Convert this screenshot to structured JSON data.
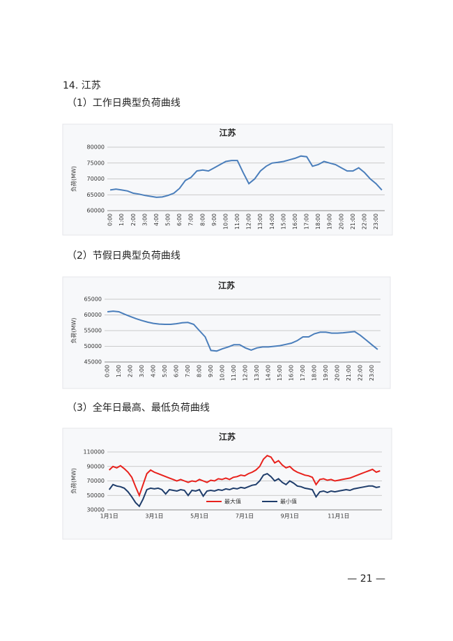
{
  "heading": "14. 江苏",
  "captions": [
    "（1）工作日典型负荷曲线",
    "（2）节假日典型负荷曲线",
    "（3）全年日最高、最低负荷曲线"
  ],
  "page_number": "— 21 —",
  "chart_data": [
    {
      "type": "line",
      "title": "江苏",
      "y_label": "负荷(MW)",
      "categories": [
        "0:00",
        null,
        "1:00",
        null,
        "2:00",
        null,
        "3:00",
        null,
        "4:00",
        null,
        "5:00",
        null,
        "6:00",
        null,
        "7:00",
        null,
        "8:00",
        null,
        "9:00",
        null,
        "10:00",
        null,
        "11:00",
        null,
        "12:00",
        null,
        "13:00",
        null,
        "14:00",
        null,
        "15:00",
        null,
        "16:00",
        null,
        "17:00",
        null,
        "18:00",
        null,
        "19:00",
        null,
        "20:00",
        null,
        "21:00",
        null,
        "22:00",
        null,
        "23:00",
        null
      ],
      "values": [
        66500,
        66800,
        66500,
        66200,
        65500,
        65200,
        64800,
        64500,
        64200,
        64300,
        64800,
        65500,
        67000,
        69500,
        70500,
        72500,
        72800,
        72500,
        73500,
        74500,
        75500,
        75800,
        75800,
        72000,
        68500,
        70000,
        72500,
        74000,
        75000,
        75200,
        75500,
        76000,
        76500,
        77200,
        77000,
        74000,
        74500,
        75500,
        75000,
        74500,
        73500,
        72500,
        72500,
        73500,
        72000,
        70000,
        68500,
        66500
      ],
      "color": "#4a7ebb",
      "ylim": [
        60000,
        80000
      ],
      "yticks": [
        60000,
        65000,
        70000,
        75000,
        80000
      ],
      "grid": true
    },
    {
      "type": "line",
      "title": "江苏",
      "y_label": "负荷(MW)",
      "categories": [
        "0:00",
        null,
        "1:00",
        null,
        "2:00",
        null,
        "3:00",
        null,
        "4:00",
        null,
        "5:00",
        null,
        "6:00",
        null,
        "7:00",
        null,
        "8:00",
        null,
        "9:00",
        null,
        "10:00",
        null,
        "11:00",
        null,
        "12:00",
        null,
        "13:00",
        null,
        "14:00",
        null,
        "15:00",
        null,
        "16:00",
        null,
        "17:00",
        null,
        "18:00",
        null,
        "19:00",
        null,
        "20:00",
        null,
        "21:00",
        null,
        "22:00",
        null,
        "23:00",
        null
      ],
      "values": [
        61000,
        61200,
        61000,
        60200,
        59500,
        58800,
        58200,
        57700,
        57300,
        57100,
        57000,
        57000,
        57200,
        57500,
        57600,
        57000,
        55000,
        53000,
        48700,
        48500,
        49200,
        49800,
        50500,
        50500,
        49500,
        48800,
        49500,
        49800,
        49800,
        50000,
        50200,
        50600,
        51000,
        51800,
        53000,
        53000,
        54000,
        54500,
        54500,
        54200,
        54200,
        54300,
        54500,
        54700,
        53500,
        52000,
        50500,
        49000
      ],
      "color": "#4a7ebb",
      "ylim": [
        45000,
        65000
      ],
      "yticks": [
        45000,
        50000,
        55000,
        60000,
        65000
      ],
      "grid": true
    },
    {
      "type": "line",
      "title": "江苏",
      "y_label": "负荷(MW)",
      "categories": [
        "1月1日",
        null,
        null,
        null,
        null,
        null,
        null,
        null,
        null,
        null,
        null,
        null,
        "3月1日",
        null,
        null,
        null,
        null,
        null,
        null,
        null,
        null,
        null,
        null,
        null,
        "5月1日",
        null,
        null,
        null,
        null,
        null,
        null,
        null,
        null,
        null,
        null,
        null,
        "7月1日",
        null,
        null,
        null,
        null,
        null,
        null,
        null,
        null,
        null,
        null,
        null,
        "9月1日",
        null,
        null,
        null,
        null,
        null,
        null,
        null,
        null,
        null,
        null,
        null,
        null,
        "11月1日",
        null,
        null,
        null,
        null,
        null,
        null,
        null,
        null,
        null,
        null,
        null
      ],
      "series": [
        {
          "name": "最大值",
          "color": "#e8211c",
          "values": [
            85000,
            90000,
            88000,
            91000,
            87000,
            82000,
            75000,
            62000,
            50000,
            65000,
            80000,
            85000,
            82000,
            80000,
            78000,
            76000,
            74000,
            72000,
            70000,
            72000,
            70000,
            68000,
            70000,
            69000,
            72000,
            70000,
            68000,
            71000,
            70000,
            73000,
            72000,
            74000,
            72000,
            75000,
            76000,
            78000,
            77000,
            80000,
            82000,
            85000,
            90000,
            100000,
            105000,
            103000,
            95000,
            98000,
            92000,
            88000,
            90000,
            85000,
            82000,
            80000,
            78000,
            77000,
            75000,
            65000,
            72000,
            73000,
            71000,
            72000,
            70000,
            71000,
            72000,
            73000,
            74000,
            76000,
            78000,
            80000,
            82000,
            84000,
            86000,
            82000,
            84000
          ]
        },
        {
          "name": "最小值",
          "color": "#1f3d6b",
          "values": [
            58000,
            65000,
            63000,
            62000,
            60000,
            55000,
            48000,
            40000,
            35000,
            45000,
            58000,
            60000,
            59000,
            60000,
            58000,
            52000,
            58000,
            57000,
            56000,
            58000,
            57000,
            50000,
            57000,
            56000,
            58000,
            49000,
            56000,
            57000,
            56000,
            58000,
            57000,
            59000,
            58000,
            60000,
            59000,
            61000,
            60000,
            62000,
            64000,
            65000,
            70000,
            78000,
            80000,
            76000,
            70000,
            73000,
            68000,
            65000,
            70000,
            67000,
            63000,
            62000,
            60000,
            59000,
            58000,
            48000,
            55000,
            56000,
            54000,
            56000,
            55000,
            56000,
            57000,
            58000,
            57000,
            59000,
            60000,
            61000,
            62000,
            63000,
            63000,
            61000,
            62000
          ]
        }
      ],
      "ylim": [
        30000,
        110000
      ],
      "yticks": [
        30000,
        50000,
        70000,
        90000,
        110000
      ],
      "grid": true,
      "legend": "bottom"
    }
  ]
}
